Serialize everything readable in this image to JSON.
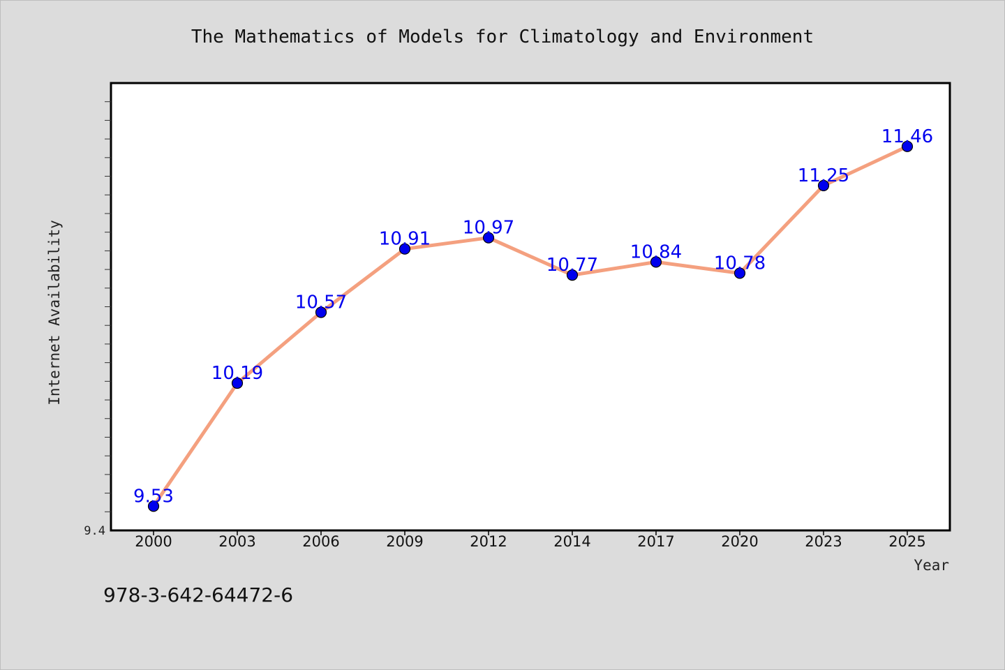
{
  "chart_data": {
    "type": "line",
    "title": "The Mathematics of Models for Climatology and Environment",
    "xlabel": "Year",
    "ylabel": "Internet Availability",
    "categories": [
      "2000",
      "2003",
      "2006",
      "2009",
      "2012",
      "2014",
      "2017",
      "2020",
      "2023",
      "2025"
    ],
    "series": [
      {
        "values": [
          9.53,
          10.19,
          10.57,
          10.91,
          10.97,
          10.77,
          10.84,
          10.78,
          11.25,
          11.46
        ],
        "labels": [
          "9.53",
          "10.19",
          "10.57",
          "10.91",
          "10.97",
          "10.77",
          "10.84",
          "10.78",
          "11.25",
          "11.46"
        ]
      }
    ],
    "ylim": [
      9.4,
      11.8
    ],
    "y_tick_label": "9.4",
    "y_minor_step": 0.1,
    "grid": false,
    "line_color": "#f4a07f",
    "marker_color": "#0000ee",
    "label_color": "#0000ee"
  },
  "footer": {
    "isbn": "978-3-642-64472-6"
  }
}
